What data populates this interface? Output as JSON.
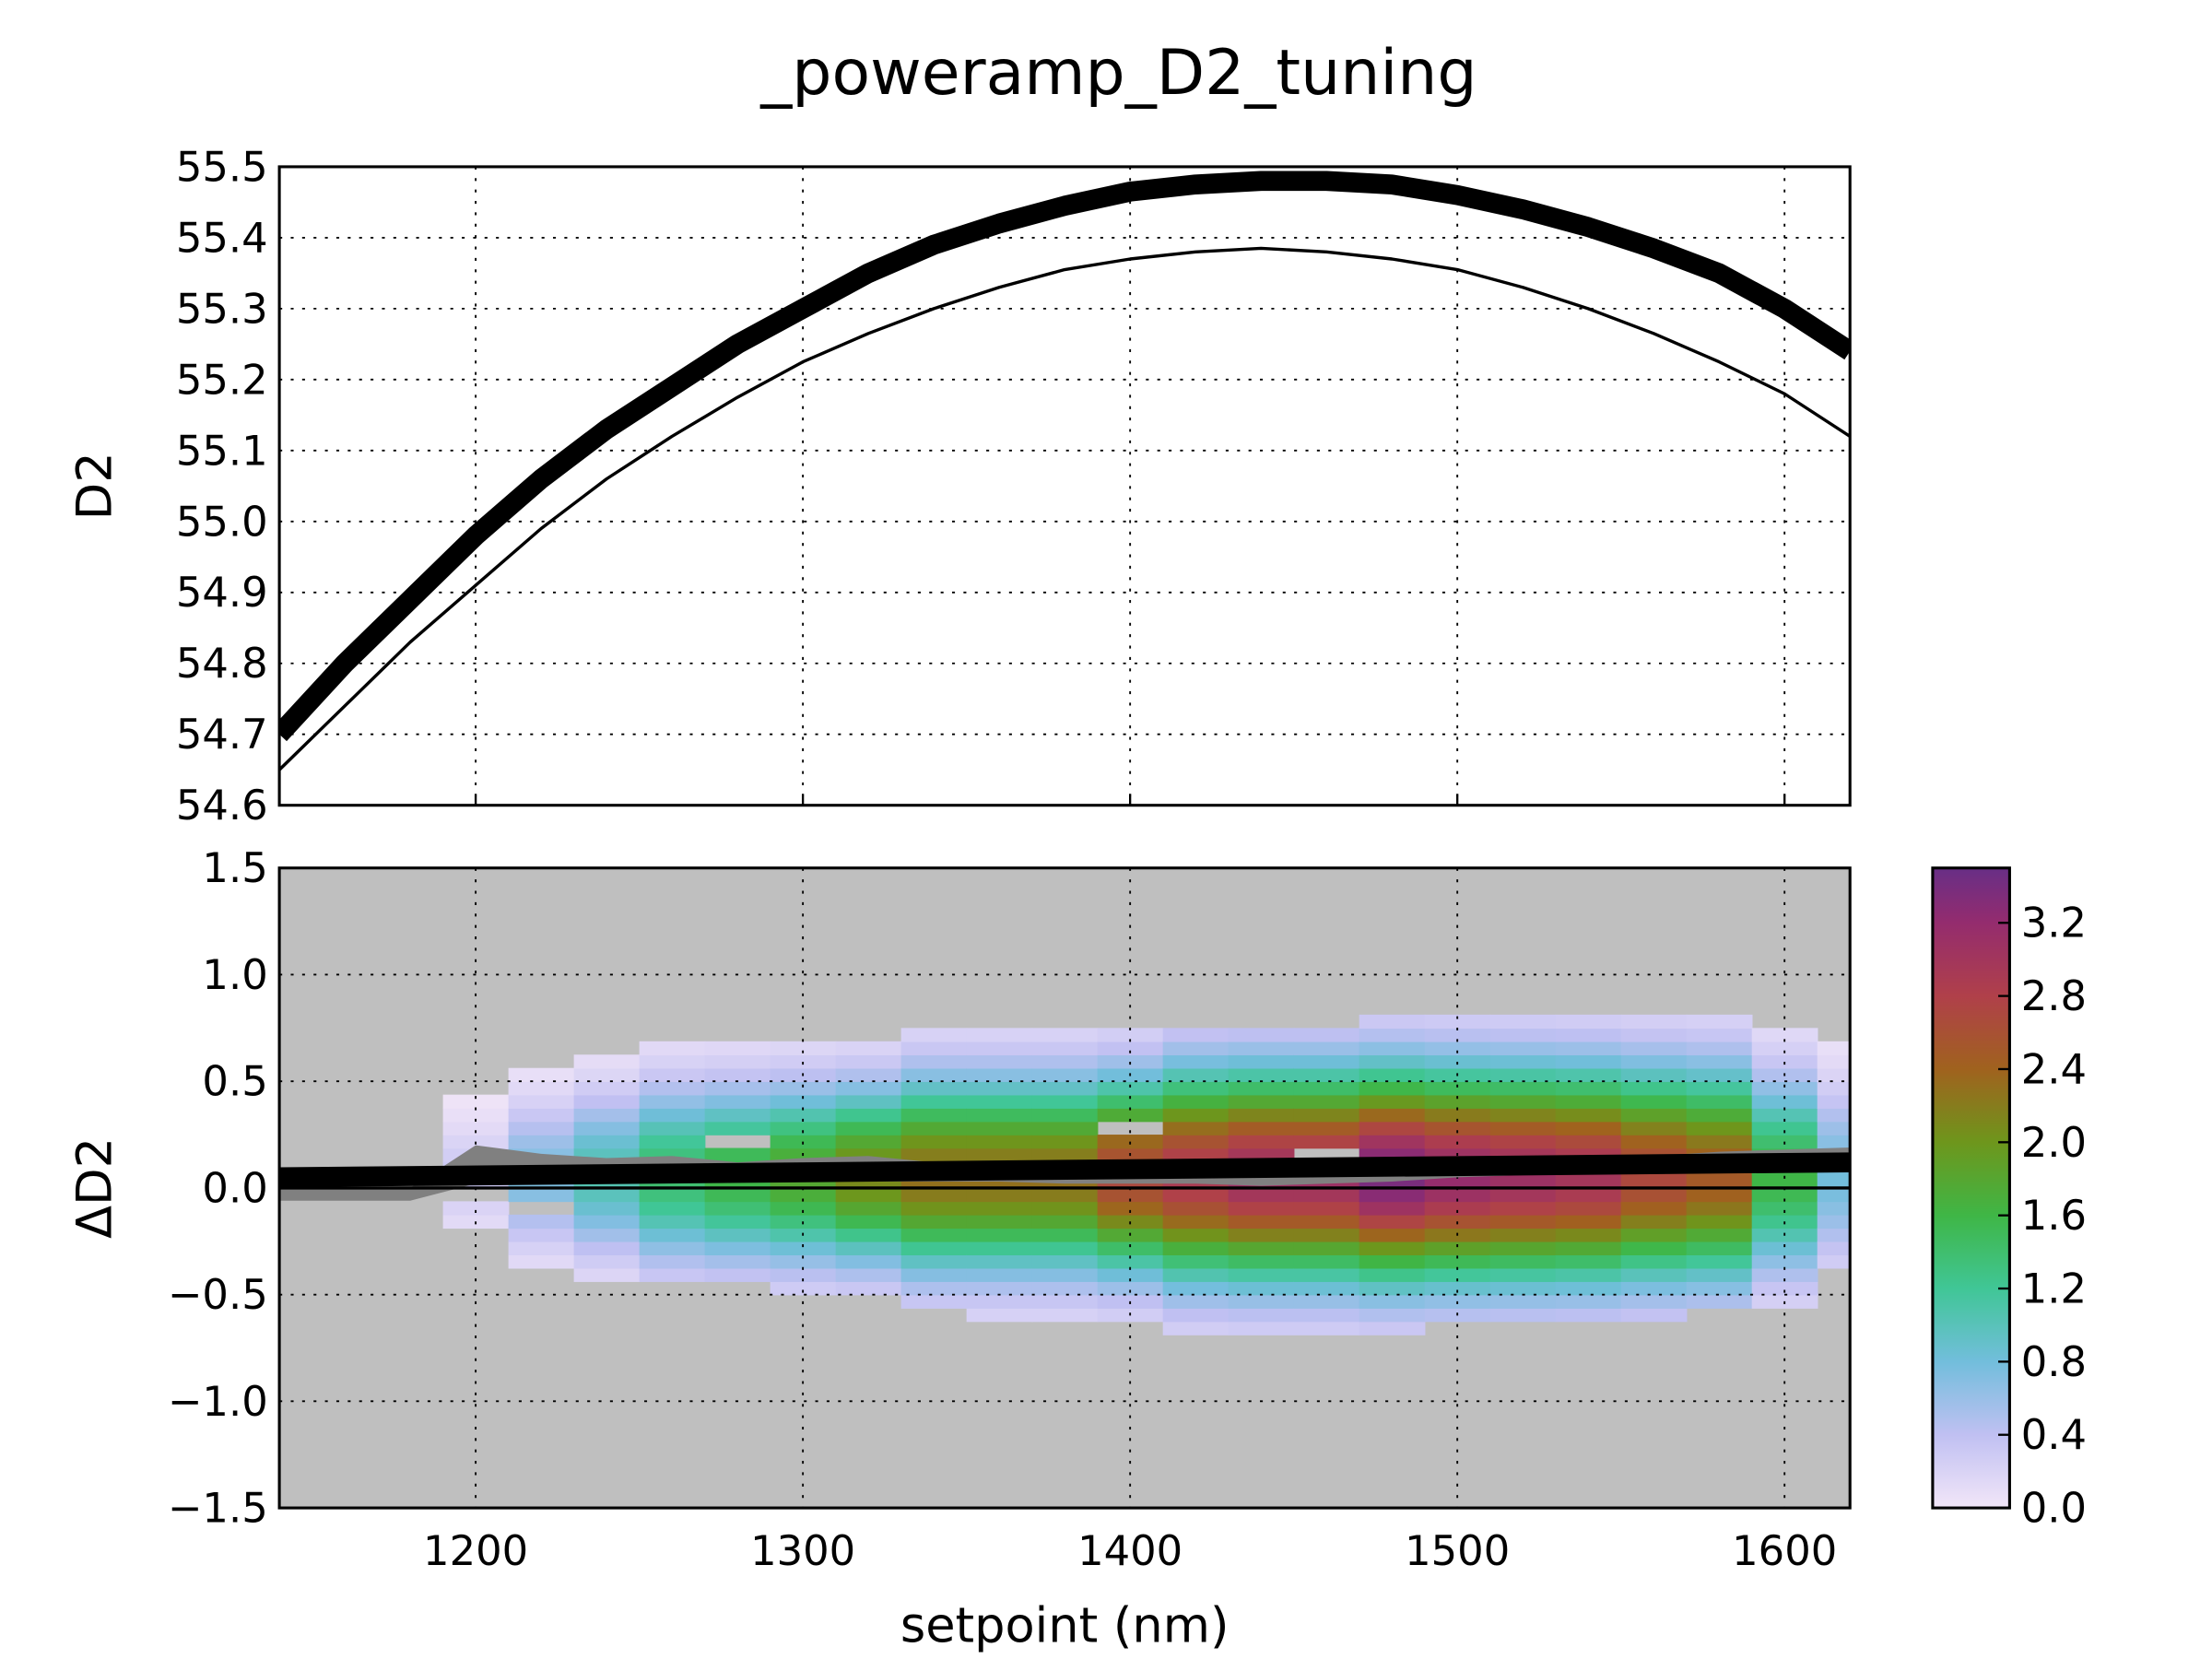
{
  "title": "_poweramp_D2_tuning",
  "chart_data": [
    {
      "type": "line",
      "ylabel": "D2",
      "xlim": [
        1140,
        1620
      ],
      "ylim": [
        54.6,
        55.5
      ],
      "grid": true,
      "xticks": [
        1200,
        1300,
        1400,
        1500,
        1600
      ],
      "yticks": [
        "54.6",
        "54.7",
        "54.8",
        "54.9",
        "55.0",
        "55.1",
        "55.2",
        "55.3",
        "55.4",
        "55.5"
      ],
      "series": [
        {
          "style": "thick",
          "color": "#000000",
          "x": [
            1140,
            1160,
            1180,
            1200,
            1220,
            1240,
            1260,
            1280,
            1300,
            1320,
            1340,
            1360,
            1380,
            1400,
            1420,
            1440,
            1460,
            1480,
            1500,
            1520,
            1540,
            1560,
            1580,
            1600,
            1620
          ],
          "y": [
            54.7,
            54.8,
            54.89,
            54.98,
            55.06,
            55.13,
            55.19,
            55.25,
            55.3,
            55.35,
            55.39,
            55.42,
            55.445,
            55.465,
            55.475,
            55.48,
            55.48,
            55.475,
            55.46,
            55.44,
            55.415,
            55.385,
            55.35,
            55.3,
            55.24
          ]
        },
        {
          "style": "thin",
          "color": "#000000",
          "x": [
            1140,
            1160,
            1180,
            1200,
            1220,
            1240,
            1260,
            1280,
            1300,
            1320,
            1340,
            1360,
            1380,
            1400,
            1420,
            1440,
            1460,
            1480,
            1500,
            1520,
            1540,
            1560,
            1580,
            1600,
            1620
          ],
          "y": [
            54.65,
            54.74,
            54.83,
            54.91,
            54.99,
            55.06,
            55.12,
            55.175,
            55.225,
            55.265,
            55.3,
            55.33,
            55.355,
            55.37,
            55.38,
            55.385,
            55.38,
            55.37,
            55.355,
            55.33,
            55.3,
            55.265,
            55.225,
            55.18,
            55.12
          ]
        }
      ]
    },
    {
      "type": "heatmap",
      "xlabel": "setpoint (nm)",
      "ylabel": "ΔD2",
      "xlim": [
        1140,
        1620
      ],
      "ylim": [
        -1.5,
        1.5
      ],
      "grid": true,
      "background": "#bfbfbf",
      "xticks": [
        "1200",
        "1300",
        "1400",
        "1500",
        "1600"
      ],
      "yticks": [
        "−1.5",
        "−1.0",
        "−0.5",
        "0.0",
        "0.5",
        "1.0",
        "1.5"
      ],
      "x_bin_width": 20,
      "y_bin_height": 0.0625,
      "columns": [
        {
          "x": 1200,
          "y_top": 0.4375,
          "y_bottom": -0.1875,
          "peak": 0.3
        },
        {
          "x": 1220,
          "y_top": 0.5625,
          "y_bottom": -0.375,
          "peak": 0.75
        },
        {
          "x": 1240,
          "y_top": 0.625,
          "y_bottom": -0.4375,
          "peak": 1.05
        },
        {
          "x": 1260,
          "y_top": 0.6875,
          "y_bottom": -0.4375,
          "peak": 1.4
        },
        {
          "x": 1280,
          "y_top": 0.6875,
          "y_bottom": -0.4375,
          "peak": 1.6
        },
        {
          "x": 1300,
          "y_top": 0.6875,
          "y_bottom": -0.5,
          "peak": 1.8
        },
        {
          "x": 1320,
          "y_top": 0.6875,
          "y_bottom": -0.5,
          "peak": 2.1
        },
        {
          "x": 1340,
          "y_top": 0.75,
          "y_bottom": -0.5625,
          "peak": 2.3
        },
        {
          "x": 1360,
          "y_top": 0.75,
          "y_bottom": -0.625,
          "peak": 2.3
        },
        {
          "x": 1380,
          "y_top": 0.75,
          "y_bottom": -0.625,
          "peak": 2.3
        },
        {
          "x": 1400,
          "y_top": 0.75,
          "y_bottom": -0.625,
          "peak": 2.7
        },
        {
          "x": 1420,
          "y_top": 0.75,
          "y_bottom": -0.6875,
          "peak": 2.9
        },
        {
          "x": 1440,
          "y_top": 0.75,
          "y_bottom": -0.6875,
          "peak": 3.1
        },
        {
          "x": 1460,
          "y_top": 0.75,
          "y_bottom": -0.6875,
          "peak": 3.1
        },
        {
          "x": 1480,
          "y_top": 0.8125,
          "y_bottom": -0.6875,
          "peak": 3.4
        },
        {
          "x": 1500,
          "y_top": 0.8125,
          "y_bottom": -0.625,
          "peak": 3.2
        },
        {
          "x": 1520,
          "y_top": 0.8125,
          "y_bottom": -0.625,
          "peak": 3.1
        },
        {
          "x": 1540,
          "y_top": 0.8125,
          "y_bottom": -0.625,
          "peak": 3.0
        },
        {
          "x": 1560,
          "y_top": 0.8125,
          "y_bottom": -0.625,
          "peak": 2.7
        },
        {
          "x": 1580,
          "y_top": 0.8125,
          "y_bottom": -0.5625,
          "peak": 2.5
        },
        {
          "x": 1600,
          "y_top": 0.75,
          "y_bottom": -0.5625,
          "peak": 1.6
        },
        {
          "x": 1620,
          "y_top": 0.6875,
          "y_bottom": -0.375,
          "peak": 0.8
        }
      ],
      "empty_cells": [
        [
          1280,
          0.21875
        ],
        [
          1400,
          0.28125
        ],
        [
          1460,
          0.15625
        ],
        [
          1220,
          -0.09375
        ],
        [
          1200,
          -0.03125
        ]
      ],
      "band": {
        "color": "#808080",
        "x": [
          1140,
          1180,
          1200,
          1220,
          1240,
          1260,
          1280,
          1300,
          1320,
          1340,
          1360,
          1380,
          1400,
          1420,
          1440,
          1460,
          1480,
          1500,
          1520,
          1540,
          1560,
          1580,
          1600,
          1620
        ],
        "upper": [
          0.0,
          0.0,
          0.2,
          0.16,
          0.14,
          0.15,
          0.12,
          0.14,
          0.15,
          0.12,
          0.12,
          0.11,
          0.1,
          0.1,
          0.1,
          0.1,
          0.11,
          0.11,
          0.12,
          0.13,
          0.15,
          0.17,
          0.18,
          0.19
        ],
        "lower": [
          -0.06,
          -0.06,
          0.02,
          0.03,
          0.03,
          0.03,
          0.03,
          0.03,
          0.03,
          0.03,
          0.03,
          0.02,
          0.02,
          0.02,
          0.01,
          0.02,
          0.03,
          0.05,
          0.06,
          0.07,
          0.08,
          0.09,
          0.1,
          0.11
        ]
      },
      "lines": [
        {
          "style": "thick",
          "x": [
            1140,
            1620
          ],
          "y": [
            0.05,
            0.12
          ]
        },
        {
          "style": "thin",
          "x": [
            1140,
            1620
          ],
          "y": [
            0.0,
            0.0
          ]
        }
      ],
      "colorbar": {
        "range": [
          0.0,
          3.5
        ],
        "ticks": [
          "0.0",
          "0.4",
          "0.8",
          "1.2",
          "1.6",
          "2.0",
          "2.4",
          "2.8",
          "3.2"
        ],
        "stops": [
          [
            0.0,
            "#f2e6f8"
          ],
          [
            0.4,
            "#c0c0f2"
          ],
          [
            0.8,
            "#72bedc"
          ],
          [
            1.2,
            "#40c696"
          ],
          [
            1.6,
            "#3fb646"
          ],
          [
            2.0,
            "#6e961c"
          ],
          [
            2.4,
            "#a0621e"
          ],
          [
            2.8,
            "#b0404a"
          ],
          [
            3.2,
            "#942c6e"
          ],
          [
            3.5,
            "#682e86"
          ]
        ]
      }
    }
  ]
}
